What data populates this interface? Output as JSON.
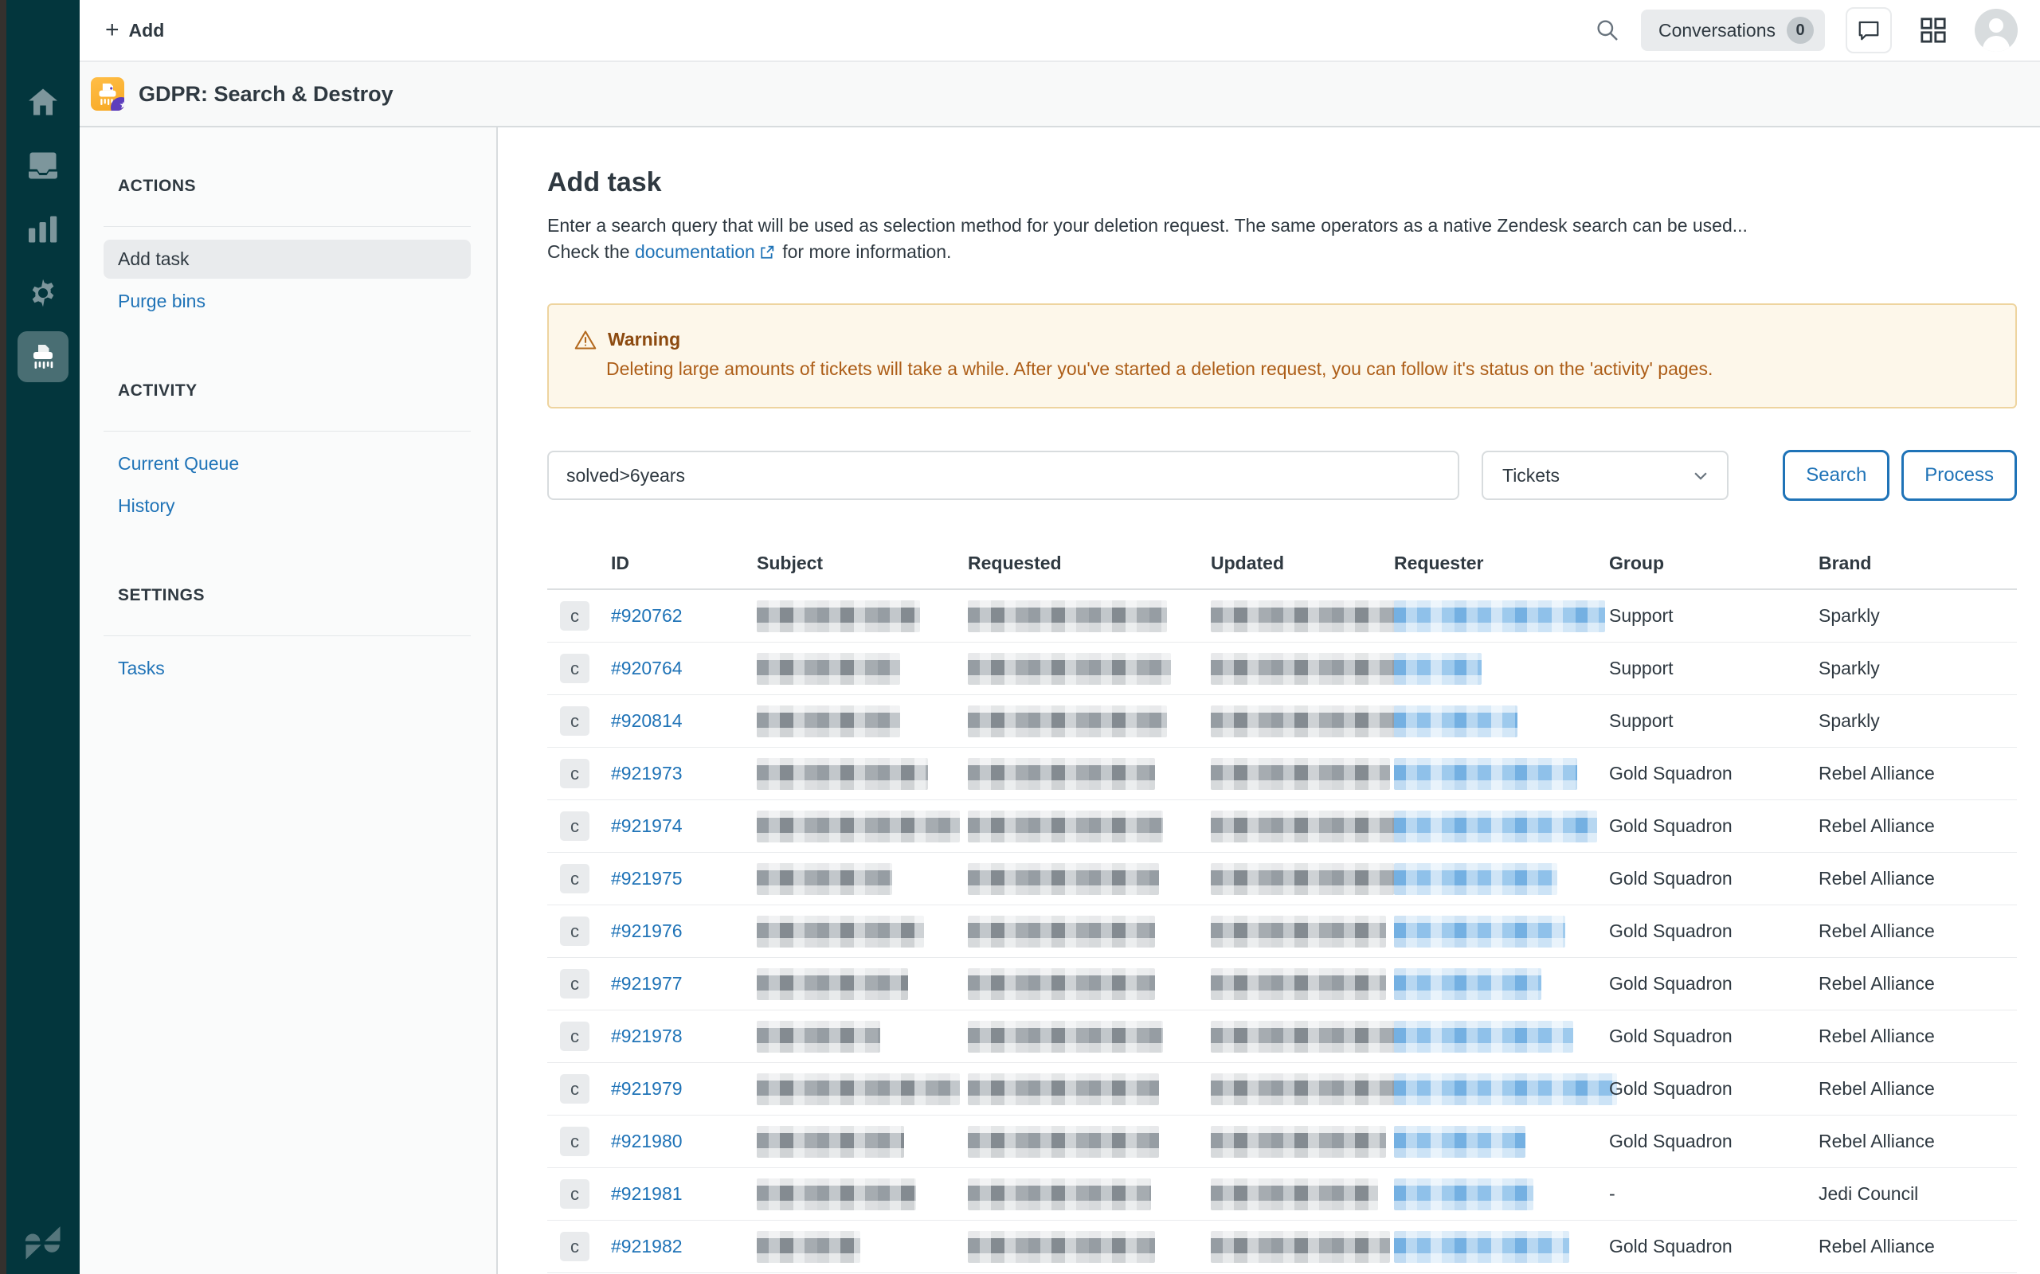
{
  "topbar": {
    "add_label": "Add",
    "conversations_label": "Conversations",
    "conversations_count": "0"
  },
  "app_header": {
    "title": "GDPR: Search & Destroy"
  },
  "sidenav": {
    "sections": [
      {
        "heading": "ACTIONS",
        "items": [
          {
            "label": "Add task",
            "active": true
          },
          {
            "label": "Purge bins"
          }
        ]
      },
      {
        "heading": "ACTIVITY",
        "items": [
          {
            "label": "Current Queue"
          },
          {
            "label": "History"
          }
        ]
      },
      {
        "heading": "SETTINGS",
        "items": [
          {
            "label": "Tasks"
          }
        ]
      }
    ]
  },
  "main": {
    "title": "Add task",
    "description_line1": "Enter a search query that will be used as selection method for your deletion request. The same operators as a native Zendesk search can be used...",
    "description_prefix": "Check the",
    "description_link": "documentation",
    "description_suffix": "for more information.",
    "warning": {
      "title": "Warning",
      "text": "Deleting large amounts of tickets will take a while. After you've started a deletion request, you can follow it's status on the 'activity' pages."
    },
    "search": {
      "query": "solved>6years",
      "type_selected": "Tickets",
      "search_label": "Search",
      "process_label": "Process"
    }
  },
  "table": {
    "columns": [
      "ID",
      "Subject",
      "Requested",
      "Updated",
      "Requester",
      "Group",
      "Brand"
    ],
    "rows": [
      {
        "status": "c",
        "id": "#920762",
        "group": "Support",
        "brand": "Sparkly",
        "blur": {
          "subject": 205,
          "requested": 250,
          "updated": 250,
          "requester": 265
        }
      },
      {
        "status": "c",
        "id": "#920764",
        "group": "Support",
        "brand": "Sparkly",
        "blur": {
          "subject": 180,
          "requested": 255,
          "updated": 280,
          "requester": 110
        }
      },
      {
        "status": "c",
        "id": "#920814",
        "group": "Support",
        "brand": "Sparkly",
        "blur": {
          "subject": 180,
          "requested": 250,
          "updated": 250,
          "requester": 155
        }
      },
      {
        "status": "c",
        "id": "#921973",
        "group": "Gold Squadron",
        "brand": "Rebel Alliance",
        "blur": {
          "subject": 215,
          "requested": 235,
          "updated": 225,
          "requester": 230
        }
      },
      {
        "status": "c",
        "id": "#921974",
        "group": "Gold Squadron",
        "brand": "Rebel Alliance",
        "blur": {
          "subject": 255,
          "requested": 245,
          "updated": 235,
          "requester": 255
        }
      },
      {
        "status": "c",
        "id": "#921975",
        "group": "Gold Squadron",
        "brand": "Rebel Alliance",
        "blur": {
          "subject": 170,
          "requested": 240,
          "updated": 230,
          "requester": 205
        }
      },
      {
        "status": "c",
        "id": "#921976",
        "group": "Gold Squadron",
        "brand": "Rebel Alliance",
        "blur": {
          "subject": 210,
          "requested": 235,
          "updated": 220,
          "requester": 215
        }
      },
      {
        "status": "c",
        "id": "#921977",
        "group": "Gold Squadron",
        "brand": "Rebel Alliance",
        "blur": {
          "subject": 190,
          "requested": 235,
          "updated": 220,
          "requester": 185
        }
      },
      {
        "status": "c",
        "id": "#921978",
        "group": "Gold Squadron",
        "brand": "Rebel Alliance",
        "blur": {
          "subject": 155,
          "requested": 245,
          "updated": 235,
          "requester": 225
        }
      },
      {
        "status": "c",
        "id": "#921979",
        "group": "Gold Squadron",
        "brand": "Rebel Alliance",
        "blur": {
          "subject": 255,
          "requested": 240,
          "updated": 245,
          "requester": 280
        }
      },
      {
        "status": "c",
        "id": "#921980",
        "group": "Gold Squadron",
        "brand": "Rebel Alliance",
        "blur": {
          "subject": 185,
          "requested": 240,
          "updated": 220,
          "requester": 165
        }
      },
      {
        "status": "c",
        "id": "#921981",
        "group": "-",
        "brand": "Jedi Council",
        "blur": {
          "subject": 200,
          "requested": 230,
          "updated": 210,
          "requester": 175
        }
      },
      {
        "status": "c",
        "id": "#921982",
        "group": "Gold Squadron",
        "brand": "Rebel Alliance",
        "blur": {
          "subject": 130,
          "requested": 235,
          "updated": 225,
          "requester": 220
        }
      }
    ]
  },
  "colors": {
    "rail_bg": "#03363D",
    "accent_blue": "#1F73B7",
    "text_dark": "#2F3941",
    "warning_bg": "#FDF7EA",
    "warning_border": "#EED49F",
    "warning_text": "#AD5E18",
    "app_icon_amber": "#F7A823",
    "app_badge_purple": "#5D3EBC"
  }
}
